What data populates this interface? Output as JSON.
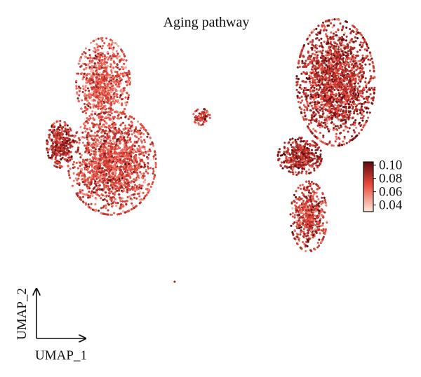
{
  "chart_data": {
    "type": "scatter",
    "title": "Aging pathway",
    "xlabel": "UMAP_1",
    "ylabel": "UMAP_2",
    "color_scale": {
      "label": "",
      "min": 0.03,
      "max": 0.105,
      "ticks": [
        0.1,
        0.08,
        0.06,
        0.04
      ],
      "tick_labels": [
        "0.10",
        "0.08",
        "0.06",
        "0.04"
      ],
      "low_color": "#fde8dc",
      "mid_color": "#e8483a",
      "high_color": "#5e0a0f"
    },
    "grid": false,
    "legend_position": "right",
    "clusters": [
      {
        "id": "left-upper-lobe",
        "center": [
          -6.2,
          5.6
        ],
        "spread": [
          1.1,
          1.9
        ],
        "n_points": 900,
        "mean_score": 0.068
      },
      {
        "id": "left-lower-lobe",
        "center": [
          -5.7,
          0.9
        ],
        "spread": [
          1.8,
          2.2
        ],
        "n_points": 1700,
        "mean_score": 0.072
      },
      {
        "id": "left-side-bulge",
        "center": [
          -8.6,
          2.0
        ],
        "spread": [
          0.55,
          1.0
        ],
        "n_points": 320,
        "mean_score": 0.086
      },
      {
        "id": "small-island",
        "center": [
          -0.7,
          3.6
        ],
        "spread": [
          0.35,
          0.35
        ],
        "n_points": 70,
        "mean_score": 0.074
      },
      {
        "id": "right-upper-block",
        "center": [
          6.8,
          5.6
        ],
        "spread": [
          1.6,
          2.7
        ],
        "n_points": 1900,
        "mean_score": 0.083
      },
      {
        "id": "right-middle-arm",
        "center": [
          4.8,
          1.3
        ],
        "spread": [
          0.9,
          0.8
        ],
        "n_points": 420,
        "mean_score": 0.087
      },
      {
        "id": "right-lower-tail",
        "center": [
          5.3,
          -2.2
        ],
        "spread": [
          0.75,
          1.5
        ],
        "n_points": 520,
        "mean_score": 0.078
      },
      {
        "id": "outlier",
        "center": [
          -2.2,
          -6.0
        ],
        "spread": [
          0.0,
          0.0
        ],
        "n_points": 1,
        "mean_score": 0.07
      }
    ]
  }
}
